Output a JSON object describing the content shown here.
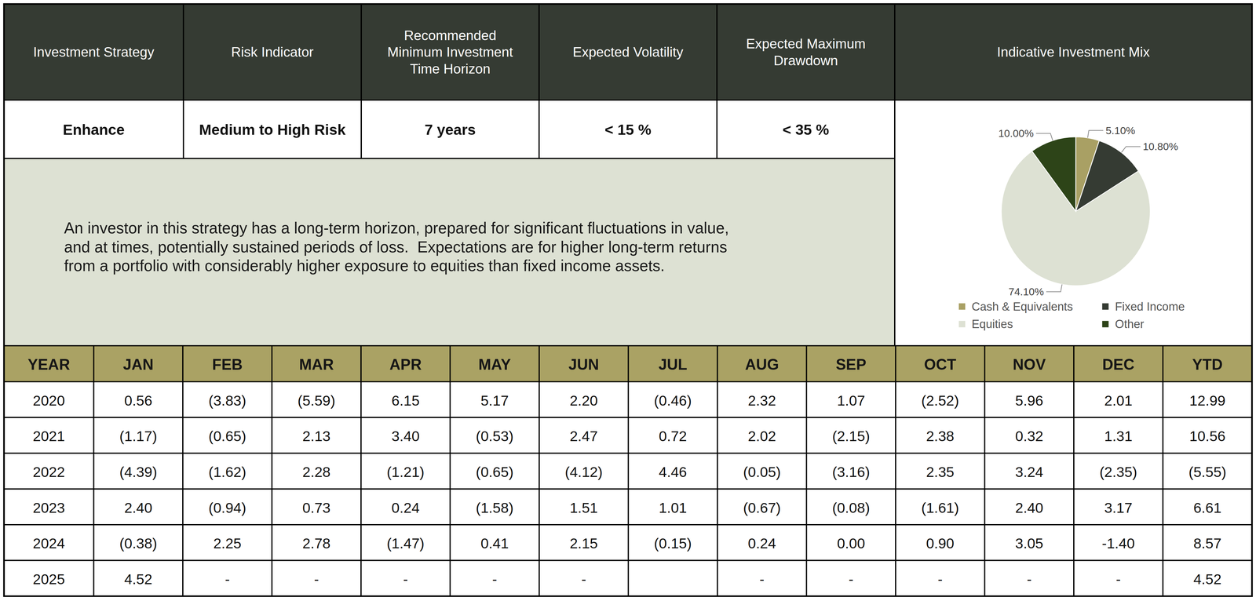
{
  "profile": {
    "headers": [
      [
        "Investment Strategy"
      ],
      [
        "Risk Indicator"
      ],
      [
        "Recommended",
        "Minimum Investment",
        "Time Horizon"
      ],
      [
        "Expected Volatility"
      ],
      [
        "Expected Maximum",
        "Drawdown"
      ],
      [
        "Indicative Investment Mix"
      ]
    ],
    "values": [
      "Enhance",
      "Medium to High Risk",
      "7 years",
      "< 15 %",
      "< 35 %"
    ],
    "description": [
      "An investor in this strategy has a long-term horizon, prepared for significant fluctuations in value,",
      "and at times, potentially sustained periods of loss.  Expectations are for higher long-term returns",
      "from a portfolio with considerably higher exposure to equities than fixed income assets."
    ]
  },
  "chart_data": {
    "type": "pie",
    "categories": [
      "Cash & Equivalents",
      "Fixed Income",
      "Equities",
      "Other"
    ],
    "values": [
      5.1,
      10.8,
      74.1,
      10.0
    ],
    "value_labels": [
      "5.10%",
      "10.80%",
      "74.10%",
      "10.00%"
    ],
    "colors": [
      "#a9a064",
      "#353b33",
      "#dde1d3",
      "#2d4418"
    ],
    "data_labels": true,
    "legend": "bottom"
  },
  "table": {
    "columns": [
      "YEAR",
      "JAN",
      "FEB",
      "MAR",
      "APR",
      "MAY",
      "JUN",
      "JUL",
      "AUG",
      "SEP",
      "OCT",
      "NOV",
      "DEC",
      "YTD"
    ],
    "rows": [
      [
        "2020",
        "0.56",
        "(3.83)",
        "(5.59)",
        "6.15",
        "5.17",
        "2.20",
        "(0.46)",
        "2.32",
        "1.07",
        "(2.52)",
        "5.96",
        "2.01",
        "12.99"
      ],
      [
        "2021",
        "(1.17)",
        "(0.65)",
        "2.13",
        "3.40",
        "(0.53)",
        "2.47",
        "0.72",
        "2.02",
        "(2.15)",
        "2.38",
        "0.32",
        "1.31",
        "10.56"
      ],
      [
        "2022",
        "(4.39)",
        "(1.62)",
        "2.28",
        "(1.21)",
        "(0.65)",
        "(4.12)",
        "4.46",
        "(0.05)",
        "(3.16)",
        "2.35",
        "3.24",
        "(2.35)",
        "(5.55)"
      ],
      [
        "2023",
        "2.40",
        "(0.94)",
        "0.73",
        "0.24",
        "(1.58)",
        "1.51",
        "1.01",
        "(0.67)",
        "(0.08)",
        "(1.61)",
        "2.40",
        "3.17",
        "6.61"
      ],
      [
        "2024",
        "(0.38)",
        "2.25",
        "2.78",
        "(1.47)",
        "0.41",
        "2.15",
        "(0.15)",
        "0.24",
        "0.00",
        "0.90",
        "3.05",
        "-1.40",
        "8.57"
      ],
      [
        "2025",
        "4.52",
        "-",
        "-",
        "-",
        "-",
        "-",
        null,
        "-",
        "-",
        "-",
        "-",
        "-",
        "4.52"
      ]
    ]
  }
}
